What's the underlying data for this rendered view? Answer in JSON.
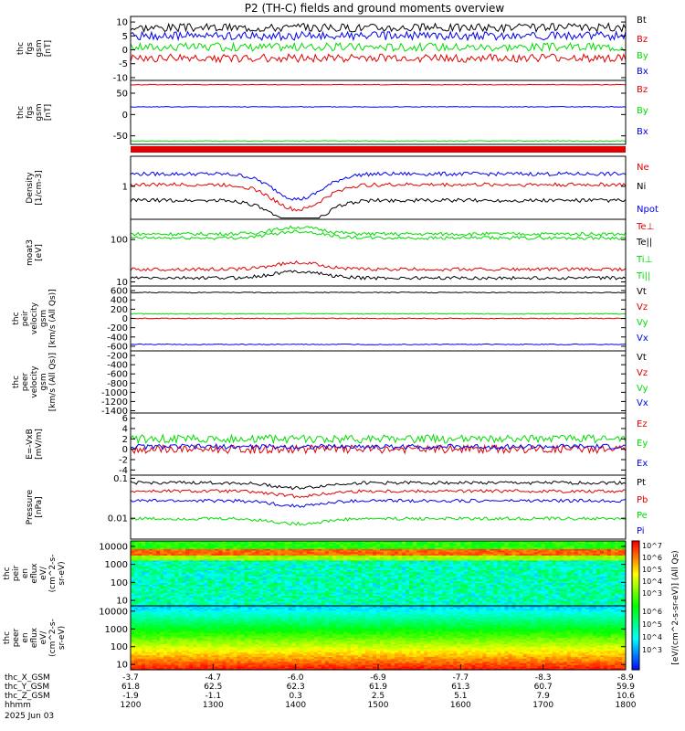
{
  "title": "P2 (TH-C) fields and ground moments overview",
  "colors": {
    "black": "#000000",
    "red": "#e00000",
    "green": "#00dd00",
    "blue": "#0000ee"
  },
  "chart_data": [
    {
      "type": "line",
      "panel": "fgs_gsm",
      "ylabel": [
        "thc",
        "fgs",
        "gsm",
        "[nT]"
      ],
      "yticks": [
        10,
        5,
        0,
        -5,
        -10
      ],
      "ylim": [
        -11,
        12
      ],
      "series": [
        {
          "name": "Bt",
          "color": "black",
          "level": 8
        },
        {
          "name": "Bz",
          "color": "red",
          "level": -3
        },
        {
          "name": "By",
          "color": "green",
          "level": 1
        },
        {
          "name": "Bx",
          "color": "blue",
          "level": 5
        }
      ]
    },
    {
      "type": "line",
      "panel": "fgs_gsm_dsl",
      "ylabel": [
        "thc",
        "fgs",
        "gsm",
        "[nT]"
      ],
      "yticks": [
        50,
        0,
        -50
      ],
      "ylim": [
        -70,
        80
      ],
      "series": [
        {
          "name": "Bz",
          "color": "red",
          "level": 70
        },
        {
          "name": "By",
          "color": "green",
          "level": -62
        },
        {
          "name": "Bx",
          "color": "blue",
          "level": 18
        }
      ]
    },
    {
      "type": "line",
      "panel": "density",
      "ylabel": [
        "Density",
        "[1/cm-3]"
      ],
      "scale": "log",
      "yticks": [
        1
      ],
      "ylim": [
        0.3,
        3
      ],
      "series": [
        {
          "name": "Ne",
          "color": "red"
        },
        {
          "name": "Ni",
          "color": "black"
        },
        {
          "name": "Npot",
          "color": "blue"
        }
      ]
    },
    {
      "type": "line",
      "panel": "temperature",
      "ylabel": [
        "moat3",
        "[eV]"
      ],
      "scale": "log",
      "yticks": [
        100,
        10
      ],
      "ylim": [
        8,
        300
      ],
      "series": [
        {
          "name": "Te⊥",
          "color": "red"
        },
        {
          "name": "Te||",
          "color": "black"
        },
        {
          "name": "Ti⊥",
          "color": "green"
        },
        {
          "name": "Ti||",
          "color": "green"
        }
      ]
    },
    {
      "type": "line",
      "panel": "peir_velocity",
      "ylabel": [
        "thc",
        "peir",
        "velocity",
        "gsm",
        "[km/s (All Qs)]"
      ],
      "yticks": [
        600,
        400,
        200,
        0,
        -200,
        -400,
        -600
      ],
      "ylim": [
        -700,
        700
      ],
      "series": [
        {
          "name": "Vt",
          "color": "black",
          "level": 560
        },
        {
          "name": "Vz",
          "color": "red",
          "level": 0
        },
        {
          "name": "Vy",
          "color": "green",
          "level": 100
        },
        {
          "name": "Vx",
          "color": "blue",
          "level": -560
        }
      ]
    },
    {
      "type": "line",
      "panel": "peer_velocity",
      "ylabel": [
        "thc",
        "peer",
        "velocity",
        "gsm",
        "[km/s (All Qs)]"
      ],
      "yticks": [
        -200,
        -400,
        -600,
        -800,
        -1000,
        -1200,
        -1400
      ],
      "ylim": [
        -1450,
        -100
      ],
      "series": [
        {
          "name": "Vt",
          "color": "black"
        },
        {
          "name": "Vz",
          "color": "red"
        },
        {
          "name": "Vy",
          "color": "green"
        },
        {
          "name": "Vx",
          "color": "blue"
        }
      ]
    },
    {
      "type": "line",
      "panel": "efield",
      "ylabel": [
        "E=-VxB",
        "[mV/m]"
      ],
      "yticks": [
        6,
        4,
        2,
        0,
        -2,
        -4
      ],
      "ylim": [
        -5,
        7
      ],
      "series": [
        {
          "name": "Ez",
          "color": "red",
          "level": 0
        },
        {
          "name": "Ey",
          "color": "green",
          "level": 2
        },
        {
          "name": "Ex",
          "color": "blue",
          "level": 0.5
        }
      ]
    },
    {
      "type": "line",
      "panel": "pressure",
      "ylabel": [
        "Pressure",
        "[nPa]"
      ],
      "scale": "log",
      "yticks": [
        0.1,
        0.01
      ],
      "ylim": [
        0.003,
        0.12
      ],
      "series": [
        {
          "name": "Pt",
          "color": "black"
        },
        {
          "name": "Pb",
          "color": "red"
        },
        {
          "name": "Pe",
          "color": "green"
        },
        {
          "name": "Pi",
          "color": "blue"
        }
      ]
    },
    {
      "type": "heatmap",
      "panel": "peir_eflux",
      "ylabel": [
        "thc",
        "peir",
        "en",
        "eflux",
        "eV/",
        "(cm^2-s-",
        "sr-eV)"
      ],
      "scale": "log",
      "yticks": [
        10000,
        1000,
        100,
        10
      ]
    },
    {
      "type": "heatmap",
      "panel": "peer_eflux",
      "ylabel": [
        "thc",
        "peer",
        "en",
        "eflux",
        "eV/",
        "(cm^2-s-",
        "sr-eV)"
      ],
      "scale": "log",
      "yticks": [
        10000,
        1000,
        100,
        10
      ]
    }
  ],
  "colorbar": {
    "labels_top": [
      "10^7",
      "10^6",
      "10^5",
      "10^4",
      "10^3"
    ],
    "labels_bottom": [
      "10^6",
      "10^5",
      "10^4",
      "10^3"
    ],
    "unit": "[eV/(cm^2-s-sr-eV)] (All Qs)"
  },
  "xaxis": {
    "rows": [
      {
        "label": "thc_X_GSM",
        "values": [
          "-3.7",
          "-4.7",
          "-6.0",
          "-6.9",
          "-7.7",
          "-8.3",
          "-8.9"
        ]
      },
      {
        "label": "thc_Y_GSM",
        "values": [
          "61.8",
          "62.5",
          "62.3",
          "61.9",
          "61.3",
          "60.7",
          "59.9"
        ]
      },
      {
        "label": "thc_Z_GSM",
        "values": [
          "-1.9",
          "-1.1",
          "0.3",
          "2.5",
          "5.1",
          "7.9",
          "10.6"
        ]
      },
      {
        "label": "hhmm",
        "values": [
          "1200",
          "1300",
          "1400",
          "1500",
          "1600",
          "1700",
          "1800"
        ]
      }
    ],
    "date": "2025 Jun 03"
  }
}
